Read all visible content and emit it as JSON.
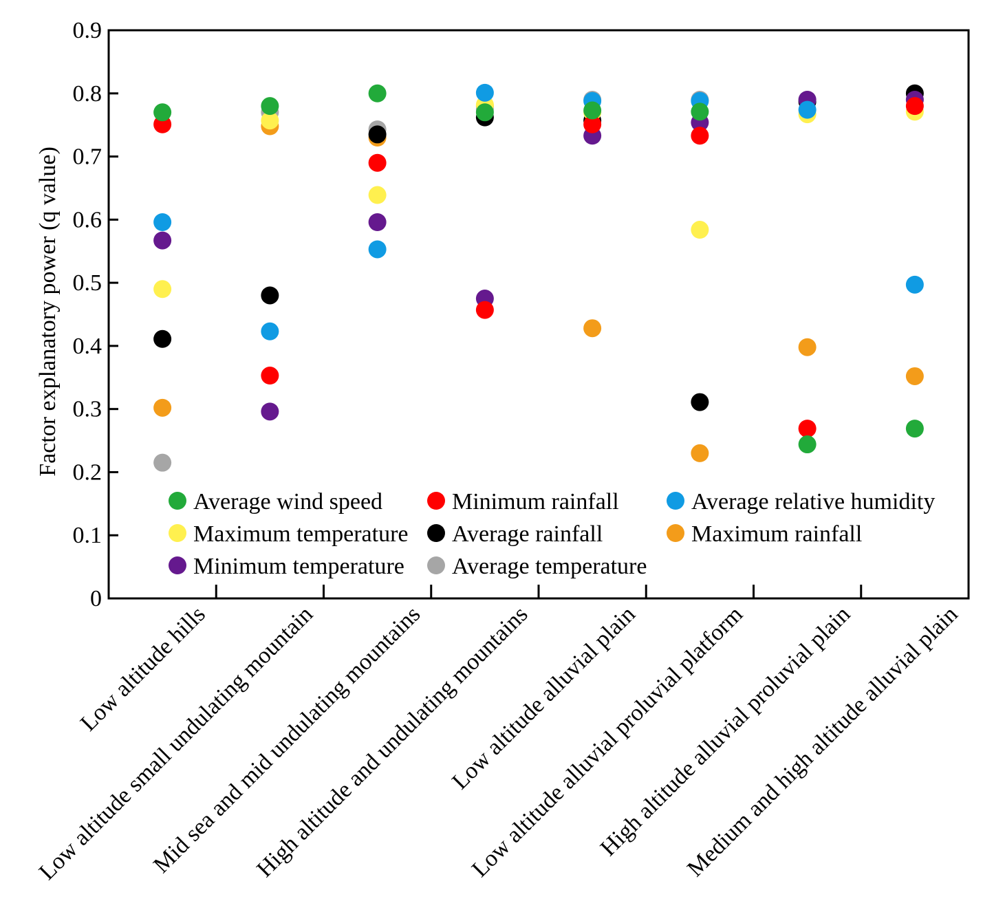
{
  "chart_data": {
    "type": "scatter",
    "title": "",
    "xlabel": "",
    "ylabel": "Factor explanatory power (q value)",
    "ylim": [
      0,
      0.9
    ],
    "yticks": [
      "0",
      "0.1",
      "0.2",
      "0.3",
      "0.4",
      "0.5",
      "0.6",
      "0.7",
      "0.8",
      "0.9"
    ],
    "grid": false,
    "legend_position": "bottom-inside",
    "categories": [
      "Low altitude hills",
      "Low altitude small undulating mountain",
      "Mid sea and mid undulating mountains",
      "High altitude and undulating mountains",
      "Low altitude alluvial plain",
      "Low altitude alluvial proluvial platform",
      "High altitude alluvial proluvial plain",
      "Medium and high altitude alluvial plain"
    ],
    "series": [
      {
        "name": "Maximum rainfall",
        "color": "#f39c1a",
        "values": [
          0.302,
          0.748,
          0.73,
          0.78,
          0.428,
          0.23,
          0.398,
          0.352
        ]
      },
      {
        "name": "Average temperature",
        "color": "#a6a6a6",
        "values": [
          0.215,
          0.77,
          0.743,
          0.775,
          0.79,
          0.79,
          0.79,
          0.79
        ]
      },
      {
        "name": "Average rainfall",
        "color": "#000000",
        "values": [
          0.411,
          0.48,
          0.735,
          0.762,
          0.757,
          0.311,
          0.787,
          0.8
        ]
      },
      {
        "name": "Maximum temperature",
        "color": "#fff04f",
        "values": [
          0.49,
          0.757,
          0.639,
          0.782,
          0.77,
          0.584,
          0.767,
          0.771
        ]
      },
      {
        "name": "Minimum temperature",
        "color": "#65198e",
        "values": [
          0.567,
          0.296,
          0.596,
          0.475,
          0.733,
          0.754,
          0.79,
          0.79
        ]
      },
      {
        "name": "Average relative humidity",
        "color": "#109be3",
        "values": [
          0.596,
          0.423,
          0.553,
          0.801,
          0.788,
          0.788,
          0.774,
          0.497
        ]
      },
      {
        "name": "Minimum rainfall",
        "color": "#ff0000",
        "values": [
          0.751,
          0.353,
          0.69,
          0.457,
          0.751,
          0.733,
          0.269,
          0.78
        ]
      },
      {
        "name": "Average wind speed",
        "color": "#22aa3a",
        "values": [
          0.77,
          0.78,
          0.8,
          0.77,
          0.773,
          0.771,
          0.244,
          0.269
        ]
      }
    ],
    "legend_order": [
      "Average wind speed",
      "Minimum rainfall",
      "Average relative humidity",
      "Maximum temperature",
      "Average rainfall",
      "Maximum rainfall",
      "Minimum temperature",
      "Average temperature"
    ]
  }
}
